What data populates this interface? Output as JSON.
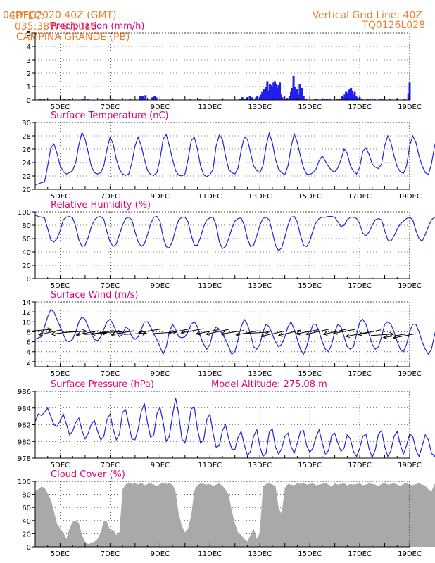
{
  "header": {
    "source": "CPTEC:",
    "coords": "035:38W-07:01S",
    "location": "CAMPINA GRANDE (PB)",
    "run": "04DEC2020 40Z (GMT)",
    "grid_note": "Vertical Grid Line: 40Z",
    "code": "TQ0126L028"
  },
  "colors": {
    "header": "#ee7d2b",
    "title": "#e0007a",
    "line": "#2222dd",
    "bar": "#2020ee",
    "cloud": "#a9a9a9"
  },
  "date_labels": [
    "5DEC",
    "7DEC",
    "9DEC",
    "11DEC",
    "13DEC",
    "15DEC",
    "17DEC",
    "19DEC"
  ],
  "chart_data": [
    {
      "type": "bar",
      "title": "Precipitation (mm/h)",
      "ylim": [
        0,
        5
      ],
      "yticks": [
        0,
        1,
        2,
        3,
        4,
        5
      ],
      "x_unit": "days since 04DEC2020 00Z",
      "x": [
        4.2,
        4.35,
        5.15,
        5.35,
        5.9,
        6.1,
        6.7,
        7.1,
        7.8,
        8.2,
        8.3,
        8.38,
        8.42,
        8.7,
        8.75,
        8.8,
        8.85,
        9.5,
        10.2,
        10.6,
        11.5,
        12.2,
        12.3,
        12.4,
        12.5,
        12.6,
        12.7,
        12.8,
        12.85,
        12.9,
        13.0,
        13.05,
        13.1,
        13.15,
        13.2,
        13.25,
        13.3,
        13.35,
        13.4,
        13.45,
        13.5,
        13.55,
        13.6,
        13.65,
        13.7,
        13.75,
        13.8,
        13.85,
        13.9,
        14.0,
        14.1,
        14.2,
        14.25,
        14.3,
        14.35,
        14.4,
        14.45,
        14.5,
        14.55,
        14.6,
        14.65,
        14.7,
        14.75,
        14.85,
        15.2,
        15.3,
        15.5,
        15.6,
        15.7,
        15.8,
        16.1,
        16.2,
        16.3,
        16.35,
        16.4,
        16.45,
        16.5,
        16.55,
        16.6,
        16.65,
        16.7,
        16.75,
        16.8,
        16.85,
        16.9,
        16.95,
        17.0,
        17.1,
        17.3,
        17.4,
        17.6,
        17.8,
        17.9,
        18.2,
        18.5,
        18.8,
        18.95,
        19.0
      ],
      "values": [
        0.1,
        0.05,
        0.1,
        0.05,
        0.1,
        0.05,
        0.1,
        0.05,
        0.1,
        0.3,
        0.3,
        0.1,
        0.35,
        0.2,
        0.25,
        0.3,
        0.2,
        0.05,
        0.05,
        0.05,
        0.1,
        0.1,
        0.2,
        0.1,
        0.2,
        0.3,
        0.2,
        0.1,
        0.2,
        0.3,
        0.2,
        0.4,
        0.6,
        0.8,
        0.5,
        1.0,
        1.4,
        0.7,
        1.2,
        1.1,
        1.0,
        1.3,
        1.4,
        1.2,
        0.9,
        1.1,
        1.3,
        0.4,
        0.2,
        0.1,
        0.15,
        0.3,
        0.6,
        0.9,
        1.8,
        1.0,
        0.5,
        0.8,
        0.4,
        1.2,
        0.6,
        0.9,
        0.3,
        0.1,
        0.1,
        0.1,
        0.05,
        0.1,
        0.1,
        0.05,
        0.05,
        0.1,
        0.3,
        0.2,
        0.4,
        0.6,
        0.5,
        0.7,
        0.8,
        0.9,
        0.7,
        0.4,
        0.6,
        0.3,
        0.2,
        0.1,
        0.2,
        0.1,
        0.05,
        0.1,
        0.05,
        0.1,
        0.1,
        0.05,
        0.05,
        0.1,
        0.5,
        1.3
      ]
    },
    {
      "type": "line",
      "title": "Surface Temperature (nC)",
      "ylim": [
        20,
        30
      ],
      "yticks": [
        20,
        22,
        24,
        26,
        28,
        30
      ],
      "x_start": 4.0,
      "x_step": 0.125,
      "values": [
        20.7,
        20.8,
        21,
        21.1,
        23.5,
        26.2,
        26.8,
        25.4,
        23.5,
        22.7,
        22.3,
        22.5,
        22.8,
        24,
        26.7,
        28.5,
        27.5,
        25.5,
        23.4,
        22.5,
        22.3,
        22.5,
        23.5,
        26,
        27.8,
        26.8,
        24.5,
        23,
        22.3,
        22.1,
        22.3,
        24,
        26.5,
        27.8,
        26.5,
        24.5,
        22.8,
        22.2,
        22.1,
        22.5,
        24.5,
        27.5,
        28.2,
        26.5,
        24.5,
        22.8,
        22.1,
        22,
        22.3,
        24.5,
        27.3,
        27.8,
        26,
        23.5,
        22.2,
        21.9,
        22.2,
        23,
        26.5,
        28.1,
        27.5,
        25,
        23,
        22.5,
        22.3,
        23.2,
        25.8,
        27.8,
        27.5,
        25.5,
        23.5,
        22.8,
        22.5,
        23.5,
        26.5,
        28.4,
        27,
        24.5,
        23,
        22.5,
        22.2,
        23.5,
        26.3,
        28.3,
        27,
        25,
        23.2,
        22.3,
        22.2,
        22.5,
        23,
        24.3,
        25,
        24.2,
        23.4,
        22.8,
        22.6,
        23.2,
        24.5,
        26,
        25.4,
        23.5,
        22.7,
        22.3,
        23.3,
        25.7,
        26.2,
        25.2,
        23.8,
        23.3,
        23.1,
        23.8,
        26.5,
        28,
        27,
        25,
        23.4,
        22.6,
        22.4,
        23.5,
        26.5,
        28,
        27,
        25,
        23.5,
        22.5,
        22.2,
        23.8,
        26.5,
        28.2,
        27.5,
        25.5,
        23.3,
        22.4,
        22.3,
        23.5,
        26.5,
        27.8,
        27,
        25.2,
        23.8
      ]
    },
    {
      "type": "line",
      "title": "Relative Humidity (%)",
      "ylim": [
        0,
        100
      ],
      "yticks": [
        0,
        20,
        40,
        60,
        80,
        100
      ],
      "x_start": 4.0,
      "x_step": 0.125,
      "values": [
        95,
        93,
        92,
        91,
        75,
        58,
        55,
        60,
        72,
        88,
        92,
        93,
        91,
        78,
        58,
        48,
        50,
        62,
        78,
        88,
        92,
        93,
        89,
        70,
        55,
        48,
        52,
        66,
        80,
        90,
        92,
        88,
        70,
        55,
        48,
        52,
        66,
        82,
        92,
        93,
        86,
        62,
        48,
        46,
        56,
        74,
        88,
        92,
        92,
        85,
        65,
        50,
        50,
        62,
        78,
        88,
        91,
        92,
        80,
        55,
        45,
        48,
        60,
        75,
        86,
        90,
        91,
        80,
        60,
        48,
        50,
        64,
        80,
        90,
        92,
        88,
        70,
        50,
        42,
        46,
        62,
        80,
        92,
        93,
        85,
        65,
        50,
        48,
        56,
        72,
        84,
        90,
        92,
        92,
        93,
        93,
        92,
        85,
        78,
        80,
        88,
        92,
        92,
        90,
        82,
        68,
        64,
        70,
        80,
        88,
        90,
        88,
        72,
        58,
        56,
        64,
        74,
        82,
        86,
        90,
        92,
        88,
        72,
        60,
        56,
        66,
        78,
        88,
        92,
        90,
        76,
        58,
        54,
        60,
        72,
        84,
        92,
        92,
        88,
        70,
        56,
        52,
        58,
        72,
        82
      ]
    },
    {
      "type": "line",
      "title": "Surface Wind (m/s)",
      "ylim": [
        1,
        14
      ],
      "yticks": [
        2,
        4,
        6,
        8,
        10,
        12,
        14
      ],
      "x_start": 4.0,
      "x_step": 0.125,
      "values": [
        6.5,
        6.8,
        7,
        9,
        11,
        12.5,
        12,
        10.5,
        9,
        7.5,
        6.2,
        6,
        6.5,
        8,
        10,
        11,
        10.5,
        9,
        7.5,
        6.5,
        6.2,
        7,
        8.5,
        10,
        10.5,
        9.5,
        8,
        7,
        7.5,
        9,
        8.5,
        7,
        6.5,
        7,
        8.5,
        10,
        10,
        9,
        7.5,
        6.5,
        5,
        3.5,
        5,
        8,
        9.5,
        8.5,
        7,
        6.8,
        7,
        8,
        9.5,
        10,
        9,
        7,
        5.5,
        4.5,
        5.5,
        8,
        9,
        8.5,
        7.5,
        6.5,
        5,
        3.5,
        4,
        6.5,
        9,
        10.5,
        9.5,
        7.5,
        5,
        4.5,
        5.5,
        8,
        9.5,
        9,
        7.5,
        6,
        5,
        5.5,
        7,
        9,
        10,
        8.5,
        6.5,
        4.5,
        3.5,
        5,
        7.5,
        9.5,
        9.5,
        8,
        6,
        4.5,
        4,
        5.5,
        8,
        9.5,
        9,
        7,
        5,
        4.5,
        5,
        7.5,
        10,
        10.5,
        9.5,
        7.5,
        5.5,
        4.5,
        5,
        7,
        9.5,
        10,
        9.5,
        8,
        6,
        4.5,
        4,
        5.5,
        8,
        9.5,
        9.5,
        8,
        6,
        4.5,
        3.5,
        4.5,
        7.5,
        9.5,
        9,
        7.5,
        6,
        4.5,
        4,
        5.5,
        7.5,
        9.5,
        9,
        7.5,
        7,
        6.5
      ],
      "arrows": [
        [
          4.2,
          8.3,
          -0.9
        ],
        [
          4.6,
          7.9,
          0.7
        ],
        [
          5.1,
          7.8,
          0.4
        ],
        [
          5.6,
          8.0,
          -0.6
        ],
        [
          6.1,
          7.8,
          0.6
        ],
        [
          6.4,
          7.6,
          -0.6
        ],
        [
          6.7,
          7.9,
          0.5
        ],
        [
          7.0,
          7.9,
          -0.5
        ],
        [
          7.5,
          7.8,
          0.6
        ],
        [
          8.0,
          7.6,
          -0.6
        ],
        [
          8.6,
          8.2,
          0.5
        ],
        [
          9.2,
          7.8,
          -0.7
        ],
        [
          9.8,
          8.2,
          0.6
        ],
        [
          10.3,
          8.2,
          0.6
        ],
        [
          10.9,
          8.0,
          0.6
        ],
        [
          11.3,
          8.0,
          0.7
        ],
        [
          11.9,
          7.9,
          0.5
        ],
        [
          12.5,
          7.8,
          0.6
        ],
        [
          12.9,
          7.8,
          -0.6
        ],
        [
          13.5,
          7.6,
          0.7
        ],
        [
          14.2,
          7.8,
          0.8
        ],
        [
          14.9,
          8.0,
          0.6
        ],
        [
          15.3,
          8.0,
          0.7
        ],
        [
          16.0,
          8.0,
          0.7
        ],
        [
          16.4,
          8.1,
          0.6
        ],
        [
          16.9,
          7.5,
          0.6
        ],
        [
          17.4,
          7.9,
          0.7
        ],
        [
          17.9,
          7.4,
          -0.7
        ],
        [
          18.4,
          7.2,
          0.5
        ],
        [
          18.8,
          7.2,
          0.6
        ]
      ]
    },
    {
      "type": "line",
      "title": "Surface Pressure (hPa)",
      "subtitle": "Model Altitude: 275.08 m",
      "ylim": [
        978,
        986
      ],
      "yticks": [
        978,
        980,
        982,
        984,
        986
      ],
      "x_start": 4.0,
      "x_step": 0.125,
      "values": [
        982.4,
        983.3,
        983.1,
        983.5,
        984,
        983,
        982,
        981.8,
        982.5,
        983.3,
        982.1,
        980.8,
        981.2,
        982.3,
        982.8,
        981.3,
        980.3,
        981,
        982.1,
        982.5,
        981.2,
        980.2,
        980.6,
        982.6,
        983.3,
        981.5,
        980.2,
        980.9,
        983.5,
        983.8,
        982,
        980.3,
        980.2,
        981.5,
        983.6,
        984.5,
        982.2,
        980.5,
        980.8,
        983.3,
        984.1,
        982.3,
        980,
        980.6,
        983.1,
        985.2,
        983.3,
        980.3,
        979.8,
        981.5,
        983.9,
        984.1,
        981.5,
        979.8,
        980.2,
        982.6,
        983.3,
        981,
        979.3,
        979.5,
        981.3,
        982,
        980.3,
        979.1,
        979,
        980.5,
        981.2,
        979.6,
        978.3,
        978.8,
        980.6,
        981.4,
        979.4,
        978.2,
        978.6,
        981.1,
        981.5,
        979.3,
        978.5,
        979.1,
        980.6,
        981,
        979.4,
        978.6,
        979.8,
        981.2,
        981.3,
        979.5,
        978.7,
        979.2,
        980.5,
        981.4,
        979.8,
        978.5,
        978.9,
        980.7,
        981,
        979.8,
        978.8,
        979.2,
        980.8,
        980.3,
        978.8,
        978.2,
        979.2,
        980.6,
        980.9,
        979.1,
        978.1,
        979,
        980.9,
        981.3,
        979.4,
        978.2,
        978.9,
        980.6,
        981.2,
        979.6,
        978.5,
        979.5,
        980.9,
        980.6,
        979,
        978.2,
        979.4,
        980.8,
        980.2,
        978.6,
        978.2,
        979.3,
        980.8,
        980.2,
        978.8,
        978.1,
        979.1,
        980.1,
        979.5,
        978.5,
        978.4,
        979.6,
        979.7
      ]
    },
    {
      "type": "area",
      "title": "Cloud Cover (%)",
      "ylim": [
        0,
        100
      ],
      "yticks": [
        0,
        20,
        40,
        60,
        80,
        100
      ],
      "x_start": 4.0,
      "x_step": 0.125,
      "values": [
        86,
        88,
        92,
        90,
        82,
        72,
        55,
        35,
        28,
        22,
        12,
        28,
        38,
        40,
        36,
        18,
        8,
        4,
        6,
        8,
        12,
        22,
        40,
        38,
        25,
        26,
        18,
        22,
        88,
        95,
        98,
        96,
        97,
        95,
        98,
        94,
        96,
        97,
        95,
        93,
        96,
        98,
        96,
        97,
        95,
        84,
        50,
        32,
        22,
        28,
        48,
        86,
        94,
        97,
        96,
        95,
        96,
        93,
        95,
        97,
        93,
        88,
        80,
        55,
        36,
        22,
        18,
        12,
        8,
        18,
        28,
        12,
        22,
        92,
        96,
        97,
        95,
        93,
        60,
        50,
        90,
        96,
        95,
        94,
        97,
        96,
        98,
        95,
        96,
        97,
        94,
        95,
        96,
        98,
        95,
        92,
        97,
        95,
        96,
        97,
        94,
        96,
        95,
        96,
        97,
        94,
        95,
        97,
        96,
        95,
        93,
        96,
        98,
        95,
        96,
        97,
        95,
        93,
        96,
        97,
        95,
        94,
        96,
        97,
        95,
        93,
        88,
        85,
        96,
        95,
        97,
        96,
        94,
        95,
        92,
        96,
        98,
        95,
        96,
        94,
        92,
        95,
        97,
        95,
        93,
        88,
        85
      ]
    }
  ]
}
